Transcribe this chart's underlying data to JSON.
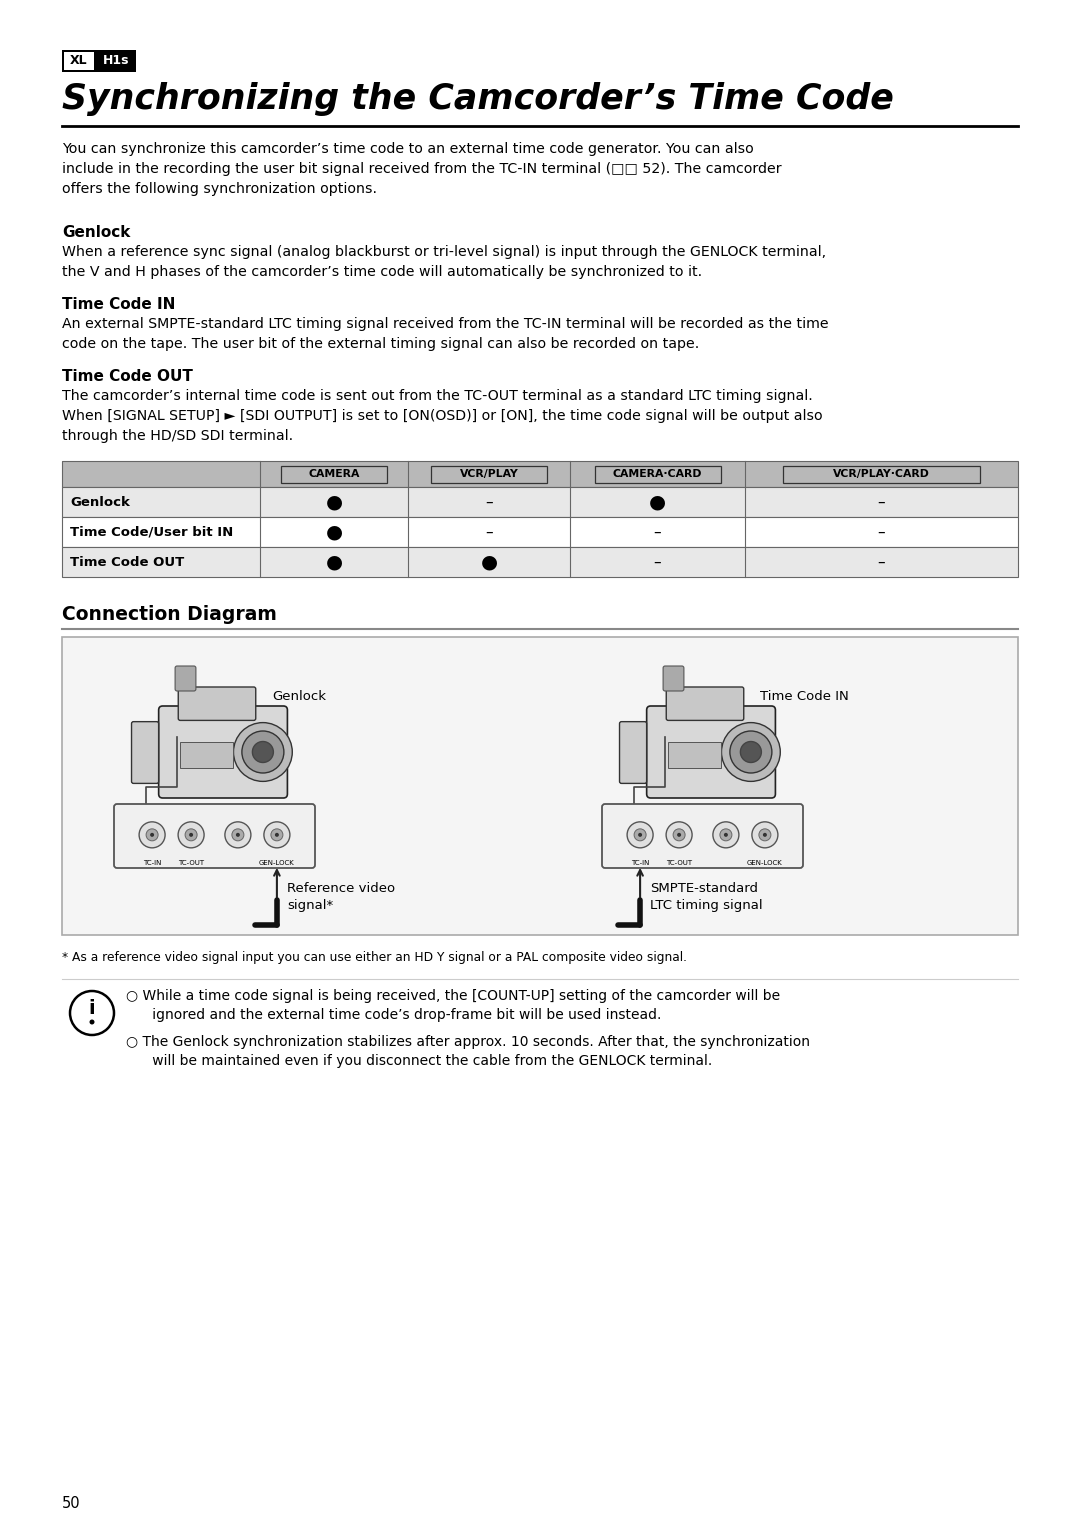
{
  "page_number": "50",
  "badge_xl": "XL",
  "badge_h1s": "H1s",
  "title": "Synchronizing the Camcorder’s Time Code",
  "intro_text": "You can synchronize this camcorder’s time code to an external time code generator. You can also\ninclude in the recording the user bit signal received from the TC-IN terminal (□□ 52). The camcorder\noffers the following synchronization options.",
  "section1_title": "Genlock",
  "section1_body": "When a reference sync signal (analog blackburst or tri-level signal) is input through the GENLOCK terminal,\nthe V and H phases of the camcorder’s time code will automatically be synchronized to it.",
  "section2_title": "Time Code IN",
  "section2_body": "An external SMPTE-standard LTC timing signal received from the TC-IN terminal will be recorded as the time\ncode on the tape. The user bit of the external timing signal can also be recorded on tape.",
  "section3_title": "Time Code OUT",
  "section3_body": "The camcorder’s internal time code is sent out from the TC-OUT terminal as a standard LTC timing signal.\nWhen [SIGNAL SETUP] ► [SDI OUTPUT] is set to [ON(OSD)] or [ON], the time code signal will be output also\nthrough the HD/SD SDI terminal.",
  "table_headers": [
    "",
    "CAMERA",
    "VCR/PLAY",
    "CAMERA·CARD",
    "VCR/PLAY·CARD"
  ],
  "table_rows": [
    [
      "Genlock",
      "●",
      "–",
      "●",
      "–"
    ],
    [
      "Time Code/User bit IN",
      "●",
      "–",
      "–",
      "–"
    ],
    [
      "Time Code OUT",
      "●",
      "●",
      "–",
      "–"
    ]
  ],
  "connection_diagram_title": "Connection Diagram",
  "left_label": "Genlock",
  "right_label": "Time Code IN",
  "left_signal": "Reference video\nsignal*",
  "right_signal": "SMPTE-standard\nLTC timing signal",
  "footnote": "* As a reference video signal input you can use either an HD Y signal or a PAL composite video signal.",
  "info_bullet1": "○ While a time code signal is being received, the [COUNT-UP] setting of the camcorder will be\n      ignored and the external time code’s drop-frame bit will be used instead.",
  "info_bullet2": "○ The Genlock synchronization stabilizes after approx. 10 seconds. After that, the synchronization\n      will be maintained even if you disconnect the cable from the GENLOCK terminal.",
  "bg_color": "#ffffff",
  "text_color": "#000000",
  "table_header_bg": "#b8b8b8",
  "table_row_bg1": "#e8e8e8",
  "table_row_bg2": "#ffffff"
}
